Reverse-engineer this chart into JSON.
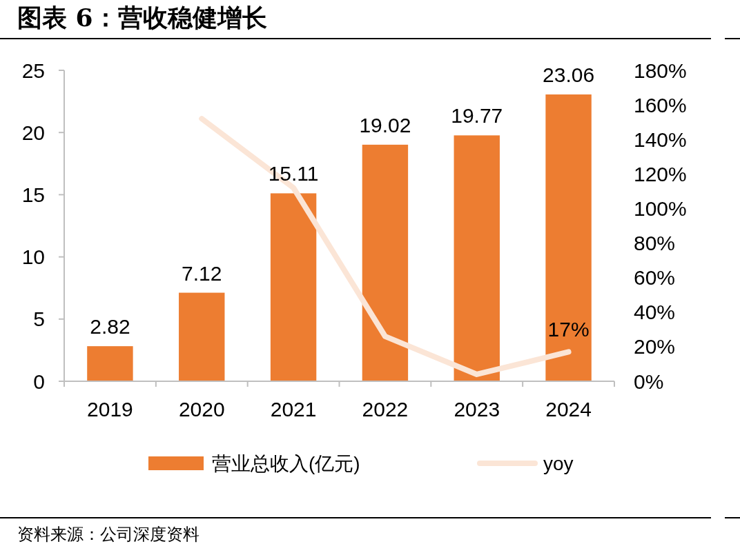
{
  "chart_data": {
    "type": "bar",
    "title": "图表 6：营收稳健增长",
    "categories": [
      "2019",
      "2020",
      "2021",
      "2022",
      "2023",
      "2024"
    ],
    "series": [
      {
        "name": "营业总收入(亿元)",
        "color": "#ed7d31",
        "values": [
          2.82,
          7.12,
          15.11,
          19.02,
          19.77,
          23.06
        ],
        "data_labels": true
      },
      {
        "name": "yoy",
        "type": "line",
        "axis": "y2",
        "color": "#fbe5d6",
        "values": [
          null,
          152,
          112,
          26,
          4,
          17
        ],
        "value_labels": [
          null,
          null,
          null,
          null,
          null,
          "17%"
        ]
      }
    ],
    "ylim": [
      0,
      25
    ],
    "yticks": [
      0,
      5,
      10,
      15,
      20,
      25
    ],
    "y2lim": [
      0,
      180
    ],
    "y2ticks": [
      {
        "value": 0,
        "label": "0%"
      },
      {
        "value": 20,
        "label": "20%"
      },
      {
        "value": 40,
        "label": "40%"
      },
      {
        "value": 60,
        "label": "60%"
      },
      {
        "value": 80,
        "label": "80%"
      },
      {
        "value": 100,
        "label": "100%"
      },
      {
        "value": 120,
        "label": "120%"
      },
      {
        "value": 140,
        "label": "140%"
      },
      {
        "value": 160,
        "label": "160%"
      },
      {
        "value": 180,
        "label": "180%"
      }
    ],
    "legend": "bottom",
    "grid": false,
    "annotations": [
      "资料来源：公司深度资料"
    ]
  }
}
